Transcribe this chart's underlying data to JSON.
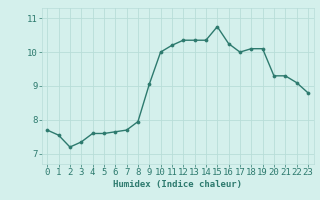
{
  "x": [
    0,
    1,
    2,
    3,
    4,
    5,
    6,
    7,
    8,
    9,
    10,
    11,
    12,
    13,
    14,
    15,
    16,
    17,
    18,
    19,
    20,
    21,
    22,
    23
  ],
  "y": [
    7.7,
    7.55,
    7.2,
    7.35,
    7.6,
    7.6,
    7.65,
    7.7,
    7.95,
    9.05,
    10.0,
    10.2,
    10.35,
    10.35,
    10.35,
    10.75,
    10.25,
    10.0,
    10.1,
    10.1,
    9.3,
    9.3,
    9.1,
    8.8
  ],
  "line_color": "#2d7a6e",
  "marker": "o",
  "markersize": 2.2,
  "linewidth": 1.0,
  "bg_color": "#d4f0ec",
  "grid_color": "#b8ddd8",
  "xlabel": "Humidex (Indice chaleur)",
  "xlim": [
    -0.5,
    23.5
  ],
  "ylim": [
    6.7,
    11.3
  ],
  "yticks": [
    7,
    8,
    9,
    10,
    11
  ],
  "xticks": [
    0,
    1,
    2,
    3,
    4,
    5,
    6,
    7,
    8,
    9,
    10,
    11,
    12,
    13,
    14,
    15,
    16,
    17,
    18,
    19,
    20,
    21,
    22,
    23
  ],
  "xlabel_fontsize": 6.5,
  "tick_fontsize": 6.5
}
